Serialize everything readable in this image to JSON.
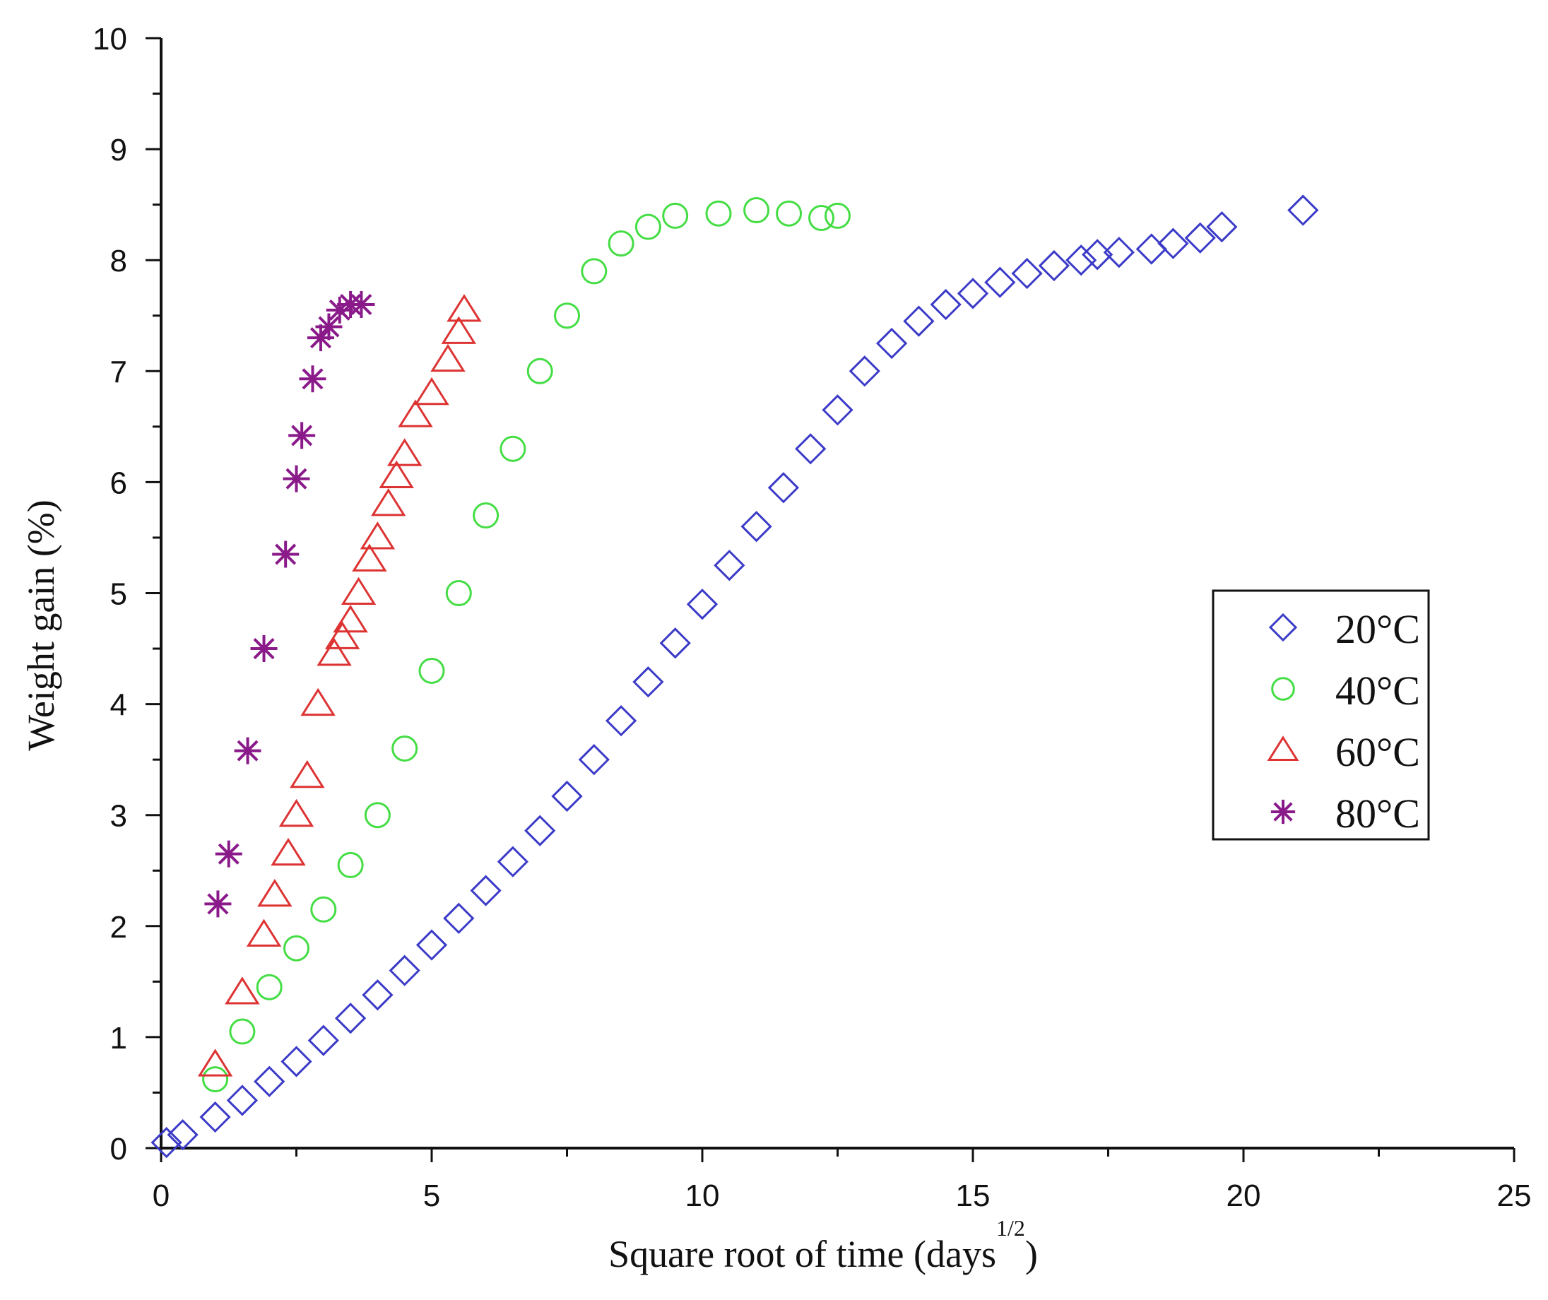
{
  "chart_data": {
    "type": "scatter",
    "title": "",
    "xlabel": "Square root of time (days",
    "xlabel_superscript": "1/2",
    "xlabel_close": ")",
    "ylabel": "Weight gain (%)",
    "xlim": [
      0,
      25
    ],
    "ylim": [
      0,
      10
    ],
    "xticks": [
      "0",
      "5",
      "10",
      "15",
      "20",
      "25"
    ],
    "yticks": [
      "0",
      "1",
      "2",
      "3",
      "4",
      "5",
      "6",
      "7",
      "8",
      "9",
      "10"
    ],
    "grid": false,
    "legend_position": "right",
    "series": [
      {
        "name": "20°C",
        "marker": "diamond",
        "color": "#3b3bc8",
        "x": [
          0.1,
          0.4,
          1,
          1.5,
          2,
          2.5,
          3,
          3.5,
          4,
          4.5,
          5,
          5.5,
          6,
          6.5,
          7,
          7.5,
          8,
          8.5,
          9,
          9.5,
          10,
          10.5,
          11,
          11.5,
          12,
          12.5,
          13,
          13.5,
          14,
          14.5,
          15,
          15.5,
          16,
          16.5,
          17,
          17.3,
          17.7,
          18.3,
          18.7,
          19.2,
          19.6,
          21.1
        ],
        "y": [
          0.05,
          0.12,
          0.28,
          0.43,
          0.6,
          0.78,
          0.97,
          1.17,
          1.38,
          1.6,
          1.83,
          2.07,
          2.32,
          2.58,
          2.86,
          3.17,
          3.5,
          3.85,
          4.2,
          4.55,
          4.9,
          5.25,
          5.6,
          5.95,
          6.3,
          6.65,
          7.0,
          7.25,
          7.45,
          7.6,
          7.7,
          7.8,
          7.88,
          7.95,
          8.0,
          8.05,
          8.07,
          8.1,
          8.15,
          8.2,
          8.3,
          8.45
        ]
      },
      {
        "name": "40°C",
        "marker": "circle",
        "color": "#44dd44",
        "x": [
          1,
          1.5,
          2,
          2.5,
          3,
          3.5,
          4,
          4.5,
          5,
          5.5,
          6,
          6.5,
          7,
          7.5,
          8,
          8.5,
          9,
          9.5,
          10.3,
          11,
          11.6,
          12.2,
          12.5
        ],
        "y": [
          0.62,
          1.05,
          1.45,
          1.8,
          2.15,
          2.55,
          3.0,
          3.6,
          4.3,
          5.0,
          5.7,
          6.3,
          7.0,
          7.5,
          7.9,
          8.15,
          8.3,
          8.4,
          8.42,
          8.45,
          8.42,
          8.38,
          8.4
        ]
      },
      {
        "name": "60°C",
        "marker": "triangle",
        "color": "#dd3333",
        "x": [
          1,
          1.5,
          1.9,
          2.1,
          2.35,
          2.5,
          2.7,
          2.9,
          3.2,
          3.35,
          3.5,
          3.65,
          3.85,
          4.0,
          4.2,
          4.35,
          4.5,
          4.7,
          5.0,
          5.3,
          5.5,
          5.6
        ],
        "y": [
          0.75,
          1.4,
          1.92,
          2.28,
          2.65,
          3.0,
          3.35,
          4.0,
          4.45,
          4.6,
          4.75,
          5.0,
          5.3,
          5.5,
          5.8,
          6.05,
          6.25,
          6.6,
          6.8,
          7.1,
          7.35,
          7.55
        ]
      },
      {
        "name": "80°C",
        "marker": "star",
        "color": "#8a1a8a",
        "x": [
          1.05,
          1.25,
          1.6,
          1.9,
          2.3,
          2.5,
          2.6,
          2.8,
          2.95,
          3.1,
          3.3,
          3.5,
          3.7
        ],
        "y": [
          2.2,
          2.65,
          3.58,
          4.5,
          5.35,
          6.03,
          6.42,
          6.93,
          7.3,
          7.4,
          7.55,
          7.6,
          7.6
        ]
      }
    ]
  }
}
